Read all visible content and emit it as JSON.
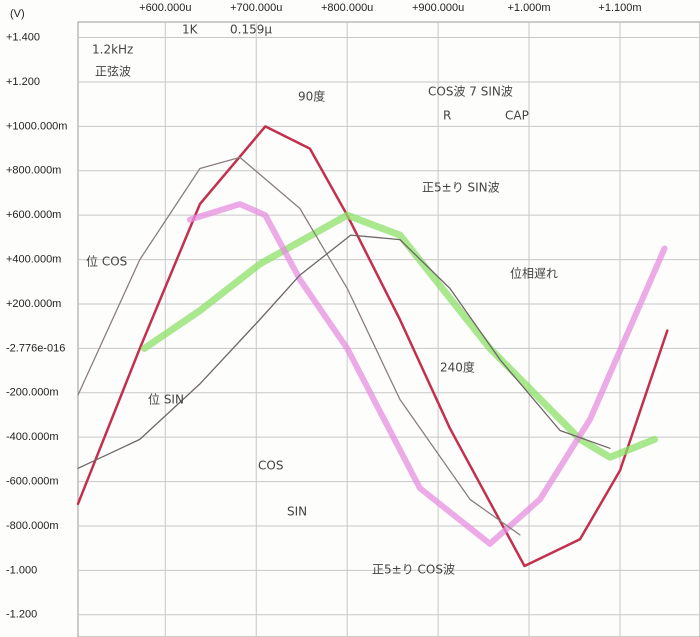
{
  "chart_data": {
    "type": "line",
    "y_unit": "(V)",
    "xlim": [
      0.000504,
      0.001188
    ],
    "ylim": [
      -1.3,
      1.47
    ],
    "xticks": [
      {
        "value": 0.0006,
        "label": "+600.000u"
      },
      {
        "value": 0.0007,
        "label": "+700.000u"
      },
      {
        "value": 0.0008,
        "label": "+800.000u"
      },
      {
        "value": 0.0009,
        "label": "+900.000u"
      },
      {
        "value": 0.001,
        "label": "+1.000m"
      },
      {
        "value": 0.0011,
        "label": "+1.100m"
      }
    ],
    "yticks": [
      {
        "value": 1.4,
        "label": "+1.400"
      },
      {
        "value": 1.2,
        "label": "+1.200"
      },
      {
        "value": 1.0,
        "label": "+1000.000m"
      },
      {
        "value": 0.8,
        "label": "+800.000m"
      },
      {
        "value": 0.6,
        "label": "+600.000m"
      },
      {
        "value": 0.4,
        "label": "+400.000m"
      },
      {
        "value": 0.2,
        "label": "+200.000m"
      },
      {
        "value": -2.776e-16,
        "label": "-2.776e-016"
      },
      {
        "value": -0.2,
        "label": "-200.000m"
      },
      {
        "value": -0.4,
        "label": "-400.000m"
      },
      {
        "value": -0.6,
        "label": "-600.000m"
      },
      {
        "value": -0.8,
        "label": "-800.000m"
      },
      {
        "value": -1.0,
        "label": "-1.000"
      },
      {
        "value": -1.2,
        "label": "-1.200"
      }
    ],
    "grid": true,
    "series": [
      {
        "color": "#c2304e",
        "width": 2.5,
        "x": [
          0.000504,
          0.000572,
          0.000638,
          0.00071,
          0.000759,
          0.0008,
          0.000858,
          0.000913,
          0.000995,
          0.001056,
          0.0011,
          0.001152
        ],
        "values": [
          -0.7,
          0,
          0.65,
          1.0,
          0.9,
          0.6,
          0.13,
          -0.36,
          -0.98,
          -0.86,
          -0.55,
          0.08
        ]
      },
      {
        "color": "#8ee06a",
        "width": 7,
        "x": [
          0.000577,
          0.000638,
          0.000704,
          0.0008,
          0.000858,
          0.000957,
          0.001056,
          0.001089,
          0.001138
        ],
        "values": [
          0,
          0.17,
          0.38,
          0.6,
          0.51,
          0,
          -0.41,
          -0.49,
          -0.41
        ]
      },
      {
        "color": "#e68ee0",
        "width": 6,
        "x": [
          0.000627,
          0.000682,
          0.00071,
          0.000748,
          0.0008,
          0.00088,
          0.000957,
          0.001012,
          0.001067,
          0.001149
        ],
        "values": [
          0.58,
          0.65,
          0.6,
          0.31,
          0,
          -0.63,
          -0.88,
          -0.68,
          -0.32,
          0.45
        ]
      },
      {
        "color": "#8a7f80",
        "width": 1.3,
        "x": [
          0.000504,
          0.000572,
          0.000638,
          0.000682,
          0.000748,
          0.0008,
          0.000858,
          0.000935,
          0.00099
        ],
        "values": [
          -0.21,
          0.4,
          0.81,
          0.86,
          0.63,
          0.27,
          -0.23,
          -0.68,
          -0.84
        ]
      },
      {
        "color": "#6f6668",
        "width": 1.3,
        "x": [
          0.000504,
          0.000572,
          0.000638,
          0.000704,
          0.000748,
          0.000804,
          0.000858,
          0.000913,
          0.000968,
          0.001034,
          0.001089
        ],
        "values": [
          -0.54,
          -0.41,
          -0.16,
          0.13,
          0.33,
          0.51,
          0.49,
          0.27,
          -0.05,
          -0.37,
          -0.45
        ]
      }
    ],
    "annotations": [
      "1.2kHz",
      "正弦波",
      "1K",
      "0.159μ",
      "90度",
      "COS波 7 SIN波",
      "R",
      "CAP",
      "正5±り SIN波",
      "位 COS",
      "位 SIN",
      "240度",
      "COS",
      "SIN",
      "正5±り COS波",
      "位相遅れ"
    ]
  }
}
